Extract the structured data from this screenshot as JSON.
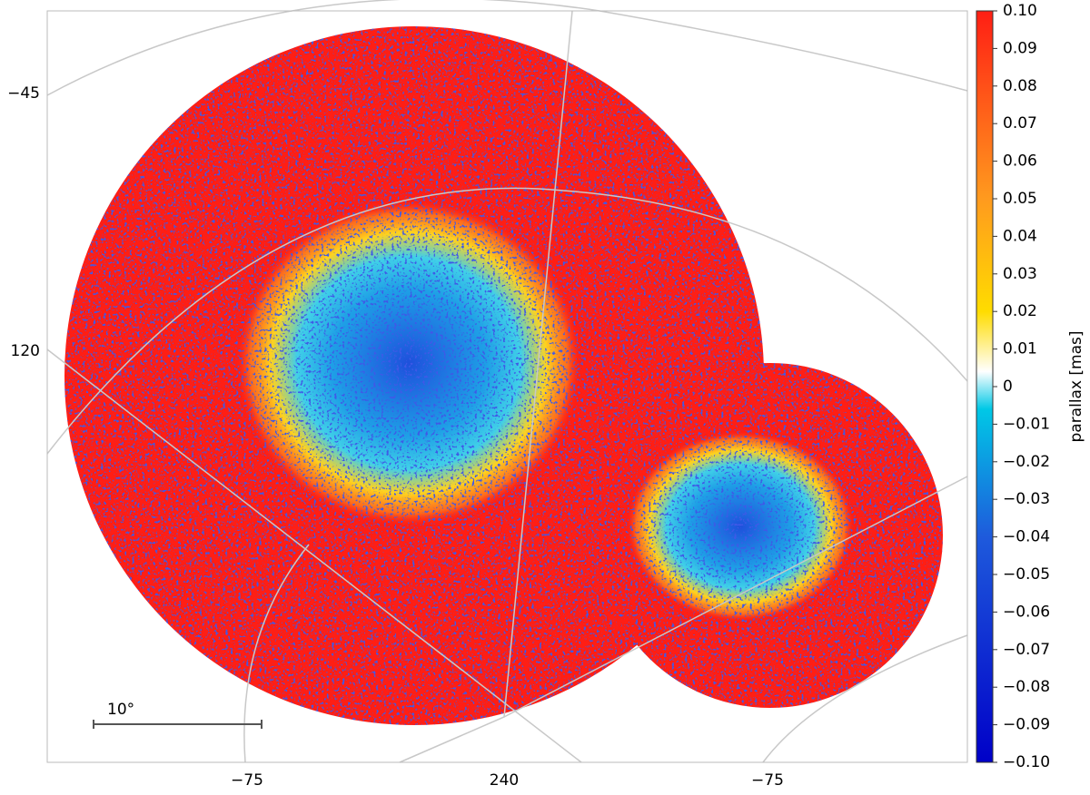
{
  "chart_data": {
    "type": "skymap",
    "colorbar": {
      "label": "parallax [mas]",
      "lim": [
        -0.1,
        0.1
      ],
      "ticks": [
        {
          "value": 0.1,
          "label": "0.10"
        },
        0.09,
        0.08,
        0.07,
        0.06,
        0.05,
        0.04,
        0.03,
        0.02,
        0.01,
        0,
        {
          "value": -0.01,
          "label": "−0.01"
        },
        {
          "value": -0.02,
          "label": "−0.02"
        },
        {
          "value": -0.03,
          "label": "−0.03"
        },
        {
          "value": -0.04,
          "label": "−0.04"
        },
        {
          "value": -0.05,
          "label": "−0.05"
        },
        {
          "value": -0.06,
          "label": "−0.06"
        },
        {
          "value": -0.07,
          "label": "−0.07"
        },
        {
          "value": -0.08,
          "label": "−0.08"
        },
        {
          "value": -0.09,
          "label": "−0.09"
        },
        {
          "value": -0.1,
          "label": "−0.10"
        }
      ]
    },
    "left_labels": [
      "−45",
      "120"
    ],
    "bottom_labels": [
      "−75",
      "240",
      "−75"
    ],
    "scale_bar_label": "10°"
  }
}
